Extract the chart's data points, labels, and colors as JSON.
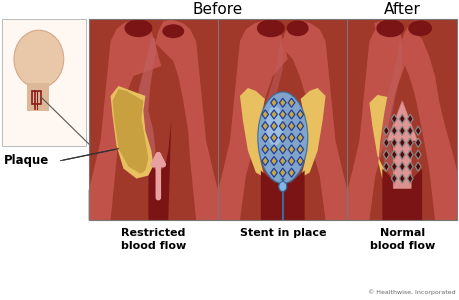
{
  "bg_color": "#ffffff",
  "title_before": "Before",
  "title_after": "After",
  "label_restricted": "Restricted\nblood flow",
  "label_stent": "Stent in place",
  "label_normal": "Normal\nblood flow",
  "label_plaque": "Plaque",
  "copyright": "© Healthwise, Incorporated",
  "artery_outer": "#A0392A",
  "artery_wall": "#C0524A",
  "artery_inner_wall": "#D4756A",
  "blood_dark": "#7B1515",
  "blood_channel": "#8B1A1A",
  "plaque_yellow": "#E8C060",
  "plaque_tan": "#C8A040",
  "plaque_orange": "#D4943A",
  "stent_blue_fill": "#5B9BD5",
  "stent_blue_dark": "#2E5FA3",
  "stent_balloon": "#7DB8E8",
  "stent_gray_fill": "#6B1010",
  "stent_gray_line": "#888888",
  "stent_gray_line2": "#AAAAAA",
  "arrow_pink": "#E8A0A0",
  "arrow_pink2": "#D48080",
  "catheter_blue": "#3A6A9A",
  "text_color": "#000000",
  "panel_border": "#888888",
  "face_skin": "#E8C8A8",
  "face_shadow": "#D4A888",
  "neck_skin": "#DDB898",
  "indicator_red": "#8B1A1A"
}
